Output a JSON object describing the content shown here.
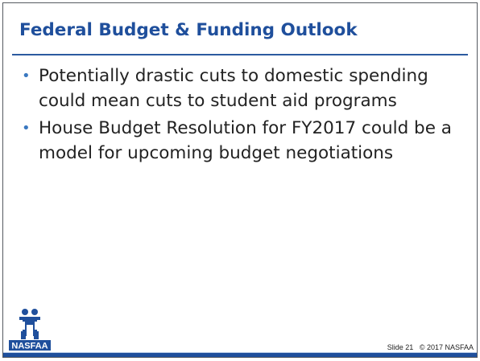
{
  "slide": {
    "title": "Federal Budget & Funding Outlook",
    "bullets": [
      "Potentially drastic cuts to domestic spending could mean cuts to student aid programs",
      "House Budget Resolution for FY2017 could be a model for upcoming budget negotiations"
    ],
    "bullet_glyph": "•"
  },
  "logo": {
    "text": "NASFAA",
    "icon": "nasfaa-logo-icon"
  },
  "footer": {
    "slide_number": "Slide 21",
    "copyright": "© 2017 NASFAA"
  },
  "colors": {
    "title": "#1f4f9c",
    "bullet": "#3a78c0",
    "bar": "#1f4f9c"
  }
}
